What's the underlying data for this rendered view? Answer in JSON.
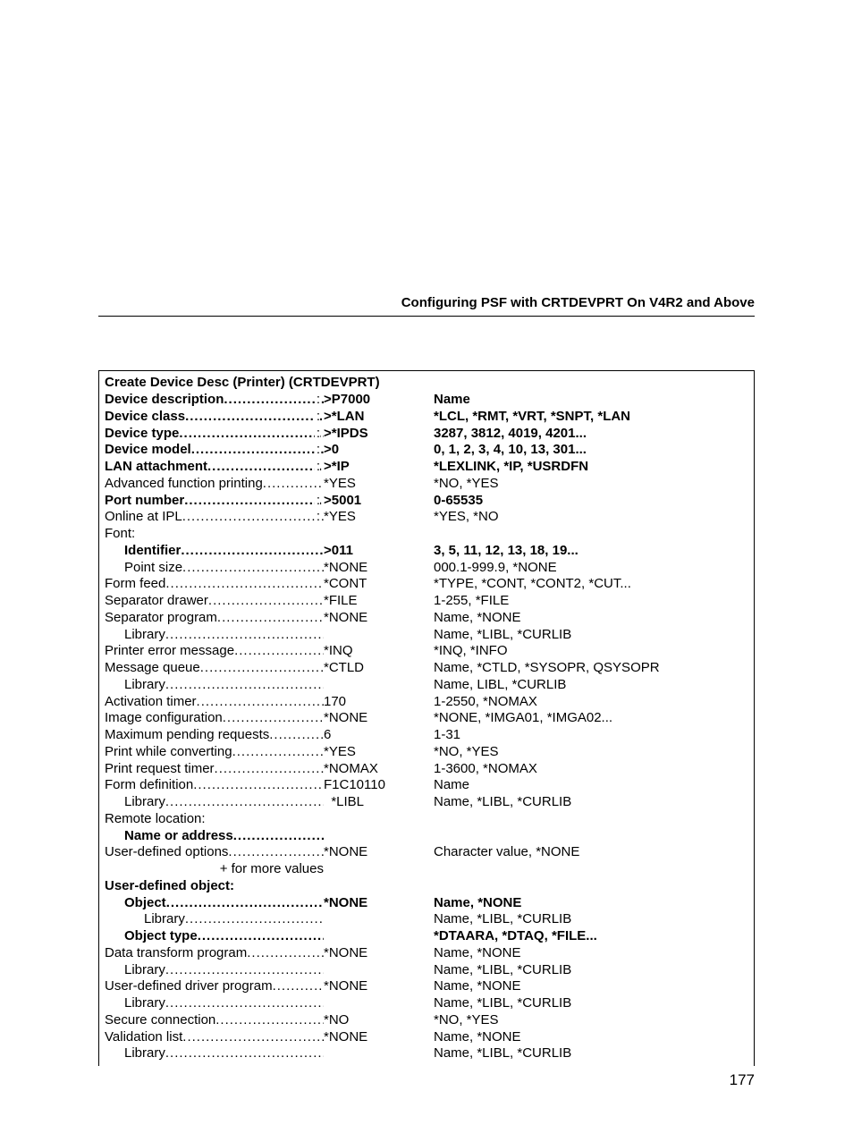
{
  "page": {
    "header": "Configuring PSF with CRTDEVPRT On V4R2 and Above",
    "tableTitle": "Create Device Desc (Printer) (CRTDEVPRT)",
    "pageNumber": "177",
    "colors": {
      "text": "#000000",
      "background": "#ffffff",
      "border": "#000000"
    },
    "fontSizes": {
      "header": 15,
      "body": 15,
      "pageNum": 17
    }
  },
  "rows": [
    {
      "label": "Device description",
      "value": ">P7000",
      "desc": "Name",
      "labelBold": true,
      "valueBold": true,
      "descBold": true,
      "indent": 0,
      "colon": true
    },
    {
      "label": "Device class",
      "value": ">*LAN",
      "desc": "*LCL, *RMT, *VRT, *SNPT, *LAN",
      "labelBold": true,
      "valueBold": true,
      "descBold": true,
      "indent": 0,
      "colon": true
    },
    {
      "label": "Device type",
      "value": ">*IPDS",
      "desc": "3287, 3812, 4019, 4201...",
      "labelBold": true,
      "valueBold": true,
      "descBold": true,
      "indent": 0,
      "colon": true
    },
    {
      "label": "Device model",
      "value": ">0",
      "desc": "0, 1, 2, 3, 4, 10, 13, 301...",
      "labelBold": true,
      "valueBold": true,
      "descBold": true,
      "indent": 0,
      "colon": true
    },
    {
      "label": "LAN attachment",
      "value": ">*IP",
      "desc": "*LEXLINK, *IP, *USRDFN",
      "labelBold": true,
      "valueBold": true,
      "descBold": true,
      "indent": 0,
      "colon": true
    },
    {
      "label": "Advanced function printing",
      "value": "*YES",
      "desc": "*NO, *YES",
      "labelBold": false,
      "valueBold": false,
      "descBold": false,
      "indent": 0,
      "colon": false
    },
    {
      "label": "Port number",
      "value": ">5001",
      "desc": "0-65535",
      "labelBold": true,
      "valueBold": true,
      "descBold": true,
      "indent": 0,
      "colon": true
    },
    {
      "label": "Online at IPL",
      "value": "*YES",
      "desc": "*YES, *NO",
      "labelBold": false,
      "valueBold": false,
      "descBold": false,
      "indent": 0,
      "colon": true
    },
    {
      "label": "Font:",
      "value": "",
      "desc": "",
      "labelBold": false,
      "valueBold": false,
      "descBold": false,
      "indent": 0,
      "colon": false,
      "nodots": true
    },
    {
      "label": "Identifier",
      "value": ">011",
      "desc": "3, 5, 11, 12, 13, 18, 19...",
      "labelBold": true,
      "valueBold": true,
      "descBold": true,
      "indent": 1,
      "colon": false
    },
    {
      "label": "Point size",
      "value": "*NONE",
      "desc": "000.1-999.9, *NONE",
      "labelBold": false,
      "valueBold": false,
      "descBold": false,
      "indent": 1,
      "colon": false
    },
    {
      "label": "Form feed",
      "value": "*CONT",
      "desc": "*TYPE, *CONT, *CONT2, *CUT...",
      "labelBold": false,
      "valueBold": false,
      "descBold": false,
      "indent": 0,
      "colon": false
    },
    {
      "label": "Separator drawer",
      "value": "*FILE",
      "desc": "1-255, *FILE",
      "labelBold": false,
      "valueBold": false,
      "descBold": false,
      "indent": 0,
      "colon": false
    },
    {
      "label": "Separator program",
      "value": "*NONE",
      "desc": "Name, *NONE",
      "labelBold": false,
      "valueBold": false,
      "descBold": false,
      "indent": 0,
      "colon": false
    },
    {
      "label": "Library",
      "value": "",
      "desc": "Name, *LIBL, *CURLIB",
      "labelBold": false,
      "valueBold": false,
      "descBold": false,
      "indent": 1,
      "colon": false
    },
    {
      "label": "Printer error message",
      "value": "*INQ",
      "desc": "*INQ, *INFO",
      "labelBold": false,
      "valueBold": false,
      "descBold": false,
      "indent": 0,
      "colon": false
    },
    {
      "label": "Message queue",
      "value": "*CTLD",
      "desc": "Name, *CTLD, *SYSOPR, QSYSOPR",
      "labelBold": false,
      "valueBold": false,
      "descBold": false,
      "indent": 0,
      "colon": false
    },
    {
      "label": "Library",
      "value": "",
      "desc": "Name, LIBL, *CURLIB",
      "labelBold": false,
      "valueBold": false,
      "descBold": false,
      "indent": 1,
      "colon": false
    },
    {
      "label": "Activation timer",
      "value": "170",
      "desc": "1-2550, *NOMAX",
      "labelBold": false,
      "valueBold": false,
      "descBold": false,
      "indent": 0,
      "colon": false
    },
    {
      "label": "Image configuration",
      "value": "*NONE",
      "desc": "*NONE, *IMGA01, *IMGA02...",
      "labelBold": false,
      "valueBold": false,
      "descBold": false,
      "indent": 0,
      "colon": false
    },
    {
      "label": "Maximum pending requests",
      "value": "6",
      "desc": "1-31",
      "labelBold": false,
      "valueBold": false,
      "descBold": false,
      "indent": 0,
      "colon": false
    },
    {
      "label": "Print while converting",
      "value": "*YES",
      "desc": "*NO, *YES",
      "labelBold": false,
      "valueBold": false,
      "descBold": false,
      "indent": 0,
      "colon": false
    },
    {
      "label": "Print request timer",
      "value": "*NOMAX",
      "desc": "1-3600, *NOMAX",
      "labelBold": false,
      "valueBold": false,
      "descBold": false,
      "indent": 0,
      "colon": false
    },
    {
      "label": "Form definition",
      "value": "F1C10110",
      "desc": "Name",
      "labelBold": false,
      "valueBold": false,
      "descBold": false,
      "indent": 0,
      "colon": false
    },
    {
      "label": "Library",
      "value": "  *LIBL",
      "desc": "Name, *LIBL, *CURLIB",
      "labelBold": false,
      "valueBold": false,
      "descBold": false,
      "indent": 1,
      "colon": false
    },
    {
      "label": "Remote location:",
      "value": "",
      "desc": "",
      "labelBold": false,
      "valueBold": false,
      "descBold": false,
      "indent": 0,
      "colon": false,
      "nodots": true
    },
    {
      "label": "Name or address",
      "value": "",
      "desc": "",
      "labelBold": true,
      "valueBold": false,
      "descBold": false,
      "indent": 1,
      "colon": false
    },
    {
      "label": "User-defined options",
      "value": "*NONE",
      "desc": "Character value, *NONE",
      "labelBold": false,
      "valueBold": false,
      "descBold": false,
      "indent": 0,
      "colon": false
    },
    {
      "label": "+ for more values",
      "value": "",
      "desc": "",
      "labelBold": false,
      "valueBold": false,
      "descBold": false,
      "indent": 0,
      "colon": false,
      "nodots": true,
      "rightAlign": true
    },
    {
      "label": "User-defined object:",
      "value": "",
      "desc": "",
      "labelBold": true,
      "valueBold": false,
      "descBold": false,
      "indent": 0,
      "colon": false,
      "nodots": true
    },
    {
      "label": "Object",
      "value": "*NONE",
      "desc": "Name, *NONE",
      "labelBold": true,
      "valueBold": true,
      "descBold": true,
      "indent": 1,
      "colon": false
    },
    {
      "label": "Library",
      "value": "",
      "desc": "Name, *LIBL, *CURLIB",
      "labelBold": false,
      "valueBold": false,
      "descBold": false,
      "indent": 2,
      "colon": false
    },
    {
      "label": "Object type",
      "value": "",
      "desc": "*DTAARA, *DTAQ, *FILE...",
      "labelBold": true,
      "valueBold": false,
      "descBold": true,
      "indent": 1,
      "colon": false
    },
    {
      "label": "Data transform program",
      "value": "*NONE",
      "desc": "Name, *NONE",
      "labelBold": false,
      "valueBold": false,
      "descBold": false,
      "indent": 0,
      "colon": false
    },
    {
      "label": "Library",
      "value": "",
      "desc": "Name, *LIBL, *CURLIB",
      "labelBold": false,
      "valueBold": false,
      "descBold": false,
      "indent": 1,
      "colon": false
    },
    {
      "label": "User-defined driver program",
      "value": "*NONE",
      "desc": "Name, *NONE",
      "labelBold": false,
      "valueBold": false,
      "descBold": false,
      "indent": 0,
      "colon": false
    },
    {
      "label": "Library",
      "value": "",
      "desc": "Name, *LIBL, *CURLIB",
      "labelBold": false,
      "valueBold": false,
      "descBold": false,
      "indent": 1,
      "colon": false
    },
    {
      "label": "Secure connection",
      "value": "*NO",
      "desc": "*NO, *YES",
      "labelBold": false,
      "valueBold": false,
      "descBold": false,
      "indent": 0,
      "colon": false
    },
    {
      "label": "Validation list",
      "value": "*NONE",
      "desc": "Name, *NONE",
      "labelBold": false,
      "valueBold": false,
      "descBold": false,
      "indent": 0,
      "colon": false
    },
    {
      "label": "Library",
      "value": "",
      "desc": "Name, *LIBL, *CURLIB",
      "labelBold": false,
      "valueBold": false,
      "descBold": false,
      "indent": 1,
      "colon": false
    }
  ]
}
